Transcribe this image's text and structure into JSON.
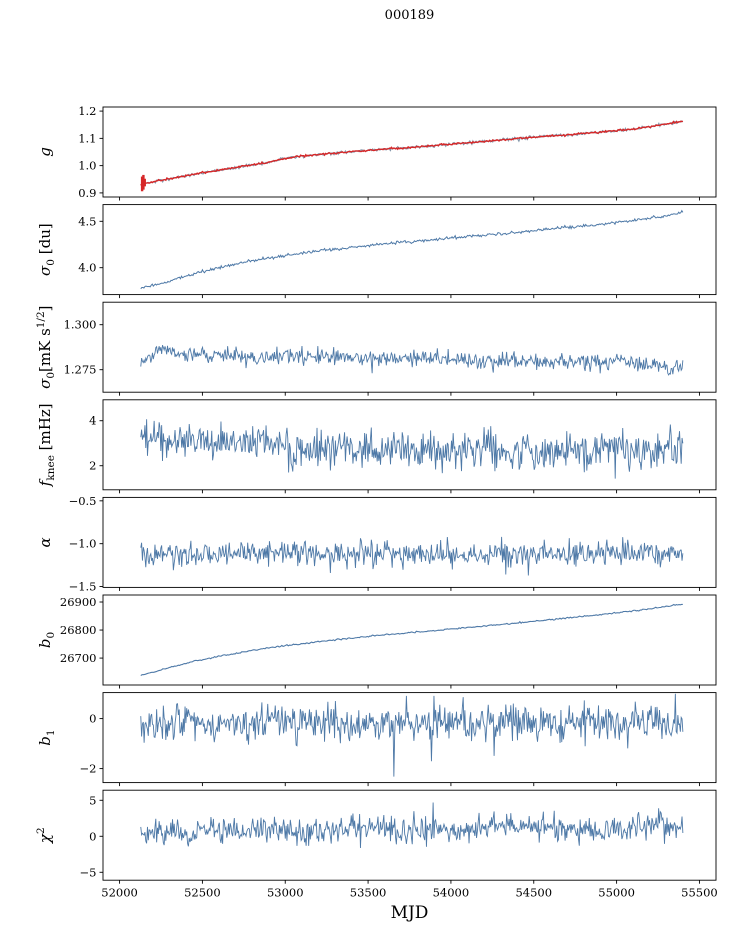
{
  "figure": {
    "title": "000189",
    "xlabel": "MJD",
    "xlim": [
      51900,
      55600
    ],
    "xticks": [
      52000,
      52500,
      53000,
      53500,
      54000,
      54500,
      55000,
      55500
    ],
    "xtick_labels": [
      "52000",
      "52500",
      "53000",
      "53500",
      "54000",
      "54500",
      "55000",
      "55500"
    ],
    "line_color": "#4e79a7",
    "red_color": "#d62728"
  },
  "chart_data": [
    {
      "id": "g",
      "type": "line",
      "ylabel_parts": [
        [
          "i",
          "g"
        ]
      ],
      "ylim": [
        0.885,
        1.215
      ],
      "yticks": [
        {
          "v": 0.9,
          "label": "0.9"
        },
        {
          "v": 1.0,
          "label": "1.0"
        },
        {
          "v": 1.1,
          "label": "1.1"
        },
        {
          "v": 1.2,
          "label": "1.2"
        }
      ],
      "series": [
        {
          "name": "g-baseline",
          "color": "#8497ab",
          "seed": 101,
          "points": 520,
          "noise": 0.0028,
          "width": 1.2,
          "xrange": [
            52128,
            55400
          ],
          "trend": [
            [
              52128,
              0.93
            ],
            [
              52200,
              0.94
            ],
            [
              52300,
              0.952
            ],
            [
              52400,
              0.963
            ],
            [
              52500,
              0.973
            ],
            [
              52600,
              0.983
            ],
            [
              52700,
              0.993
            ],
            [
              52800,
              1.003
            ],
            [
              52900,
              1.012
            ],
            [
              53000,
              1.027
            ],
            [
              53100,
              1.035
            ],
            [
              53200,
              1.04
            ],
            [
              53300,
              1.046
            ],
            [
              53400,
              1.051
            ],
            [
              53500,
              1.056
            ],
            [
              53600,
              1.06
            ],
            [
              53700,
              1.064
            ],
            [
              53800,
              1.069
            ],
            [
              53900,
              1.074
            ],
            [
              54000,
              1.079
            ],
            [
              54100,
              1.084
            ],
            [
              54200,
              1.089
            ],
            [
              54300,
              1.094
            ],
            [
              54400,
              1.099
            ],
            [
              54500,
              1.104
            ],
            [
              54600,
              1.109
            ],
            [
              54700,
              1.113
            ],
            [
              54800,
              1.118
            ],
            [
              54900,
              1.123
            ],
            [
              55000,
              1.128
            ],
            [
              55100,
              1.134
            ],
            [
              55200,
              1.143
            ],
            [
              55300,
              1.153
            ],
            [
              55400,
              1.162
            ]
          ]
        },
        {
          "name": "g-gain",
          "color": "#d62728",
          "seed": 102,
          "points": 520,
          "noise": 0.0017,
          "width": 1.4,
          "xrange": [
            52128,
            55400
          ],
          "trend": [
            [
              52128,
              0.93
            ],
            [
              52200,
              0.94
            ],
            [
              52300,
              0.952
            ],
            [
              52400,
              0.963
            ],
            [
              52500,
              0.973
            ],
            [
              52600,
              0.983
            ],
            [
              52700,
              0.993
            ],
            [
              52800,
              1.003
            ],
            [
              52900,
              1.012
            ],
            [
              53000,
              1.027
            ],
            [
              53100,
              1.035
            ],
            [
              53200,
              1.04
            ],
            [
              53300,
              1.046
            ],
            [
              53400,
              1.051
            ],
            [
              53500,
              1.056
            ],
            [
              53600,
              1.06
            ],
            [
              53700,
              1.064
            ],
            [
              53800,
              1.069
            ],
            [
              53900,
              1.074
            ],
            [
              54000,
              1.079
            ],
            [
              54100,
              1.084
            ],
            [
              54200,
              1.089
            ],
            [
              54300,
              1.094
            ],
            [
              54400,
              1.099
            ],
            [
              54500,
              1.104
            ],
            [
              54600,
              1.109
            ],
            [
              54700,
              1.113
            ],
            [
              54800,
              1.118
            ],
            [
              54900,
              1.123
            ],
            [
              55000,
              1.128
            ],
            [
              55100,
              1.134
            ],
            [
              55200,
              1.143
            ],
            [
              55300,
              1.153
            ],
            [
              55400,
              1.162
            ]
          ],
          "errorbars": [
            {
              "x": 52136,
              "y0": 0.906,
              "y1": 0.96
            },
            {
              "x": 52144,
              "y0": 0.912,
              "y1": 0.966
            },
            {
              "x": 52152,
              "y0": 0.924,
              "y1": 0.952
            }
          ]
        }
      ]
    },
    {
      "id": "sigma0-du",
      "type": "line",
      "ylabel_parts": [
        [
          "i",
          "σ"
        ],
        [
          "sub",
          "0"
        ],
        [
          "n",
          " [du]"
        ]
      ],
      "ylim": [
        3.71,
        4.68
      ],
      "yticks": [
        {
          "v": 4.0,
          "label": "4.0"
        },
        {
          "v": 4.5,
          "label": "4.5"
        }
      ],
      "series": [
        {
          "name": "sigma0-du",
          "color": "#4e79a7",
          "seed": 201,
          "points": 520,
          "noise": 0.008,
          "width": 1.0,
          "xrange": [
            52128,
            55400
          ],
          "trend": [
            [
              52128,
              3.78
            ],
            [
              52250,
              3.83
            ],
            [
              52400,
              3.91
            ],
            [
              52550,
              3.98
            ],
            [
              52700,
              4.04
            ],
            [
              52850,
              4.09
            ],
            [
              53000,
              4.13
            ],
            [
              53150,
              4.17
            ],
            [
              53300,
              4.2
            ],
            [
              53450,
              4.23
            ],
            [
              53600,
              4.26
            ],
            [
              53800,
              4.29
            ],
            [
              54000,
              4.32
            ],
            [
              54200,
              4.35
            ],
            [
              54400,
              4.38
            ],
            [
              54600,
              4.42
            ],
            [
              54800,
              4.45
            ],
            [
              55000,
              4.49
            ],
            [
              55150,
              4.52
            ],
            [
              55300,
              4.56
            ],
            [
              55400,
              4.6
            ]
          ]
        }
      ]
    },
    {
      "id": "sigma0-mk",
      "type": "line",
      "ylabel_parts": [
        [
          "i",
          "σ"
        ],
        [
          "sub",
          "0"
        ],
        [
          "n",
          "[mK s"
        ],
        [
          "sup",
          "1/2"
        ],
        [
          "n",
          "]"
        ]
      ],
      "ylim": [
        1.2625,
        1.3125
      ],
      "yticks": [
        {
          "v": 1.275,
          "label": "1.275"
        },
        {
          "v": 1.3,
          "label": "1.300"
        }
      ],
      "series": [
        {
          "name": "sigma0-mk",
          "color": "#4e79a7",
          "seed": 301,
          "points": 650,
          "noise": 0.0022,
          "width": 0.9,
          "xrange": [
            52128,
            55400
          ],
          "trend": [
            [
              52128,
              1.277
            ],
            [
              52190,
              1.2838
            ],
            [
              52240,
              1.2865
            ],
            [
              52300,
              1.2852
            ],
            [
              52400,
              1.2828
            ],
            [
              52500,
              1.2838
            ],
            [
              52600,
              1.282
            ],
            [
              52700,
              1.2828
            ],
            [
              52800,
              1.2812
            ],
            [
              52900,
              1.282
            ],
            [
              53000,
              1.2832
            ],
            [
              53100,
              1.2815
            ],
            [
              53250,
              1.2822
            ],
            [
              53400,
              1.2818
            ],
            [
              53550,
              1.281
            ],
            [
              53700,
              1.2818
            ],
            [
              53900,
              1.2808
            ],
            [
              54100,
              1.2804
            ],
            [
              54300,
              1.2798
            ],
            [
              54500,
              1.28
            ],
            [
              54700,
              1.2792
            ],
            [
              54900,
              1.2795
            ],
            [
              55050,
              1.28
            ],
            [
              55200,
              1.278
            ],
            [
              55300,
              1.2762
            ],
            [
              55360,
              1.2758
            ],
            [
              55400,
              1.2775
            ]
          ]
        }
      ]
    },
    {
      "id": "fknee",
      "type": "line",
      "ylabel_parts": [
        [
          "i",
          "f"
        ],
        [
          "sub",
          "knee"
        ],
        [
          "n",
          " [mHz]"
        ]
      ],
      "ylim": [
        0.93,
        4.93
      ],
      "yticks": [
        {
          "v": 2,
          "label": "2"
        },
        {
          "v": 4,
          "label": "4"
        }
      ],
      "series": [
        {
          "name": "fknee",
          "color": "#4e79a7",
          "seed": 401,
          "points": 650,
          "noise": 0.42,
          "width": 0.9,
          "xrange": [
            52128,
            55400
          ],
          "trend": [
            [
              52128,
              3.25
            ],
            [
              52300,
              3.15
            ],
            [
              52500,
              3.05
            ],
            [
              52700,
              3.0
            ],
            [
              52900,
              2.92
            ],
            [
              53100,
              2.85
            ],
            [
              53400,
              2.78
            ],
            [
              53700,
              2.74
            ],
            [
              54000,
              2.72
            ],
            [
              54400,
              2.7
            ],
            [
              54800,
              2.68
            ],
            [
              55100,
              2.7
            ],
            [
              55400,
              2.68
            ]
          ]
        }
      ]
    },
    {
      "id": "alpha",
      "type": "line",
      "ylabel_parts": [
        [
          "i",
          "α"
        ]
      ],
      "ylim": [
        -1.51,
        -0.46
      ],
      "yticks": [
        {
          "v": -1.5,
          "label": "−1.5"
        },
        {
          "v": -1.0,
          "label": "−1.0"
        },
        {
          "v": -0.5,
          "label": "−0.5"
        }
      ],
      "series": [
        {
          "name": "alpha",
          "color": "#4e79a7",
          "seed": 501,
          "points": 650,
          "noise": 0.075,
          "width": 0.9,
          "xrange": [
            52128,
            55400
          ],
          "trend": [
            [
              52128,
              -1.11
            ],
            [
              53000,
              -1.12
            ],
            [
              54000,
              -1.12
            ],
            [
              55400,
              -1.11
            ]
          ]
        }
      ]
    },
    {
      "id": "b0",
      "type": "line",
      "ylabel_parts": [
        [
          "i",
          "b"
        ],
        [
          "sub",
          "0"
        ]
      ],
      "ylim": [
        26604,
        26925
      ],
      "yticks": [
        {
          "v": 26700,
          "label": "26700"
        },
        {
          "v": 26800,
          "label": "26800"
        },
        {
          "v": 26900,
          "label": "26900"
        }
      ],
      "series": [
        {
          "name": "b0",
          "color": "#4e79a7",
          "seed": 601,
          "points": 420,
          "noise": 1.2,
          "width": 1.1,
          "xrange": [
            52128,
            55400
          ],
          "trend": [
            [
              52128,
              26638
            ],
            [
              52300,
              26666
            ],
            [
              52450,
              26688
            ],
            [
              52600,
              26706
            ],
            [
              52750,
              26722
            ],
            [
              52900,
              26736
            ],
            [
              53050,
              26748
            ],
            [
              53200,
              26758
            ],
            [
              53350,
              26768
            ],
            [
              53500,
              26777
            ],
            [
              53700,
              26788
            ],
            [
              53900,
              26798
            ],
            [
              54100,
              26809
            ],
            [
              54300,
              26820
            ],
            [
              54500,
              26831
            ],
            [
              54700,
              26843
            ],
            [
              54900,
              26855
            ],
            [
              55100,
              26868
            ],
            [
              55250,
              26880
            ],
            [
              55400,
              26893
            ]
          ]
        }
      ]
    },
    {
      "id": "b1",
      "type": "line",
      "ylabel_parts": [
        [
          "i",
          "b"
        ],
        [
          "sub",
          "1"
        ]
      ],
      "ylim": [
        -2.56,
        1.04
      ],
      "yticks": [
        {
          "v": -2,
          "label": "−2"
        },
        {
          "v": 0,
          "label": "0"
        }
      ],
      "series": [
        {
          "name": "b1",
          "color": "#4e79a7",
          "seed": 701,
          "points": 650,
          "noise": 0.38,
          "width": 0.9,
          "xrange": [
            52128,
            55400
          ],
          "trend": [
            [
              52128,
              -0.18
            ],
            [
              52800,
              -0.22
            ],
            [
              53500,
              -0.12
            ],
            [
              54200,
              -0.18
            ],
            [
              55000,
              -0.12
            ],
            [
              55400,
              -0.15
            ]
          ],
          "outliers": [
            {
              "x": 53655,
              "y": -2.32
            }
          ]
        }
      ]
    },
    {
      "id": "chi2",
      "type": "line",
      "ylabel_parts": [
        [
          "i",
          "χ"
        ],
        [
          "sup",
          "2"
        ]
      ],
      "ylim": [
        -6.1,
        6.4
      ],
      "yticks": [
        {
          "v": -5,
          "label": "−5"
        },
        {
          "v": 0,
          "label": "0"
        },
        {
          "v": 5,
          "label": "5"
        }
      ],
      "series": [
        {
          "name": "chi2",
          "color": "#4e79a7",
          "seed": 801,
          "points": 650,
          "noise": 0.95,
          "width": 0.9,
          "xrange": [
            52128,
            55400
          ],
          "trend": [
            [
              52128,
              0.55
            ],
            [
              52500,
              0.8
            ],
            [
              52900,
              0.7
            ],
            [
              53300,
              1.3
            ],
            [
              53700,
              0.9
            ],
            [
              54100,
              1.0
            ],
            [
              54500,
              1.4
            ],
            [
              54800,
              0.9
            ],
            [
              55100,
              1.2
            ],
            [
              55400,
              1.5
            ]
          ]
        }
      ]
    }
  ]
}
